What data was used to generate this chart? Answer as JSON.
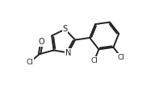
{
  "bg_color": "#ffffff",
  "line_color": "#222222",
  "line_width": 1.4,
  "font_size": 7.0,
  "xlim": [
    -1.5,
    8.5
  ],
  "ylim": [
    -3.5,
    4.0
  ]
}
